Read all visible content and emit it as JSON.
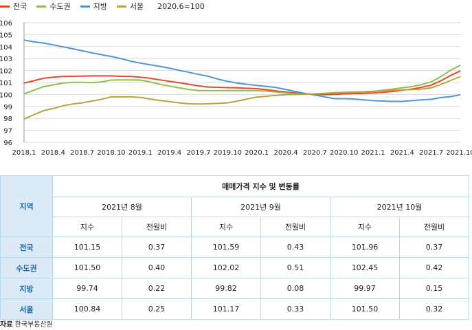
{
  "chart_data": {
    "type": "line",
    "index_note": "2020.6=100",
    "x_tick_labels": [
      "2018.1",
      "2018.4",
      "2018.7",
      "2018.10",
      "2019.1",
      "2019.4",
      "2019.7",
      "2019.10",
      "2020.1",
      "2020.4",
      "2020.7",
      "2020.10",
      "2021.1",
      "2021.4",
      "2021.7",
      "2021.10"
    ],
    "ylim": [
      96,
      106
    ],
    "y_ticks": [
      96,
      97,
      98,
      99,
      100,
      101,
      102,
      103,
      104,
      105,
      106
    ],
    "grid": "horizontal",
    "legend_position": "top-left",
    "x": [
      "2018.1",
      "2018.2",
      "2018.3",
      "2018.4",
      "2018.5",
      "2018.6",
      "2018.7",
      "2018.8",
      "2018.9",
      "2018.10",
      "2018.11",
      "2018.12",
      "2019.1",
      "2019.2",
      "2019.3",
      "2019.4",
      "2019.5",
      "2019.6",
      "2019.7",
      "2019.8",
      "2019.9",
      "2019.10",
      "2019.11",
      "2019.12",
      "2020.1",
      "2020.2",
      "2020.3",
      "2020.4",
      "2020.5",
      "2020.6",
      "2020.7",
      "2020.8",
      "2020.9",
      "2020.10",
      "2020.11",
      "2020.12",
      "2021.1",
      "2021.2",
      "2021.3",
      "2021.4",
      "2021.5",
      "2021.6",
      "2021.7",
      "2021.8",
      "2021.9",
      "2021.10"
    ],
    "series": [
      {
        "name": "전국",
        "color": "#e2492b",
        "values": [
          100.95,
          101.15,
          101.35,
          101.45,
          101.5,
          101.52,
          101.53,
          101.55,
          101.55,
          101.55,
          101.52,
          101.5,
          101.45,
          101.35,
          101.22,
          101.1,
          100.98,
          100.85,
          100.72,
          100.62,
          100.6,
          100.57,
          100.55,
          100.52,
          100.48,
          100.4,
          100.3,
          100.2,
          100.12,
          100.05,
          100.0,
          99.98,
          100.0,
          100.05,
          100.08,
          100.1,
          100.12,
          100.18,
          100.25,
          100.35,
          100.45,
          100.6,
          100.78,
          101.15,
          101.59,
          101.96
        ]
      },
      {
        "name": "수도권",
        "color": "#8dbf4c",
        "values": [
          100.05,
          100.35,
          100.65,
          100.8,
          100.95,
          101.02,
          101.02,
          100.98,
          101.05,
          101.2,
          101.22,
          101.22,
          101.2,
          101.05,
          100.85,
          100.7,
          100.55,
          100.42,
          100.32,
          100.32,
          100.32,
          100.32,
          100.32,
          100.32,
          100.32,
          100.28,
          100.2,
          100.12,
          100.05,
          100.02,
          100.05,
          100.1,
          100.15,
          100.18,
          100.2,
          100.22,
          100.25,
          100.35,
          100.45,
          100.55,
          100.65,
          100.82,
          101.05,
          101.5,
          102.02,
          102.45
        ]
      },
      {
        "name": "지방",
        "color": "#4b95d8",
        "values": [
          104.55,
          104.4,
          104.3,
          104.15,
          103.98,
          103.82,
          103.65,
          103.48,
          103.32,
          103.18,
          103.0,
          102.78,
          102.62,
          102.48,
          102.35,
          102.2,
          102.02,
          101.85,
          101.68,
          101.52,
          101.28,
          101.1,
          100.95,
          100.85,
          100.75,
          100.68,
          100.58,
          100.42,
          100.25,
          100.08,
          99.95,
          99.8,
          99.65,
          99.65,
          99.62,
          99.55,
          99.48,
          99.45,
          99.42,
          99.42,
          99.48,
          99.55,
          99.6,
          99.74,
          99.82,
          99.97
        ]
      },
      {
        "name": "서울",
        "color": "#b9a13f",
        "values": [
          97.95,
          98.3,
          98.65,
          98.82,
          99.05,
          99.2,
          99.3,
          99.45,
          99.6,
          99.8,
          99.8,
          99.8,
          99.75,
          99.62,
          99.5,
          99.4,
          99.3,
          99.22,
          99.2,
          99.22,
          99.25,
          99.3,
          99.45,
          99.62,
          99.78,
          99.85,
          99.92,
          99.98,
          100.0,
          100.02,
          100.05,
          100.08,
          100.12,
          100.15,
          100.18,
          100.22,
          100.27,
          100.32,
          100.35,
          100.38,
          100.4,
          100.45,
          100.55,
          100.84,
          101.17,
          101.5
        ]
      }
    ]
  },
  "table": {
    "title": "매매가격 지수 및 변동률",
    "region_header": "지역",
    "months": [
      "2021년 8월",
      "2021년 9월",
      "2021년 10월"
    ],
    "subheaders": [
      "지수",
      "전월비"
    ],
    "rows": [
      {
        "region": "전국",
        "values": [
          "101.15",
          "0.37",
          "101.59",
          "0.43",
          "101.96",
          "0.37"
        ]
      },
      {
        "region": "수도권",
        "values": [
          "101.50",
          "0.40",
          "102.02",
          "0.51",
          "102.45",
          "0.42"
        ]
      },
      {
        "region": "지방",
        "values": [
          "99.74",
          "0.22",
          "99.82",
          "0.08",
          "99.97",
          "0.15"
        ]
      },
      {
        "region": "서울",
        "values": [
          "100.84",
          "0.25",
          "101.17",
          "0.33",
          "101.50",
          "0.32"
        ]
      }
    ]
  },
  "source": {
    "label": "자료",
    "text": "한국부동산원"
  }
}
